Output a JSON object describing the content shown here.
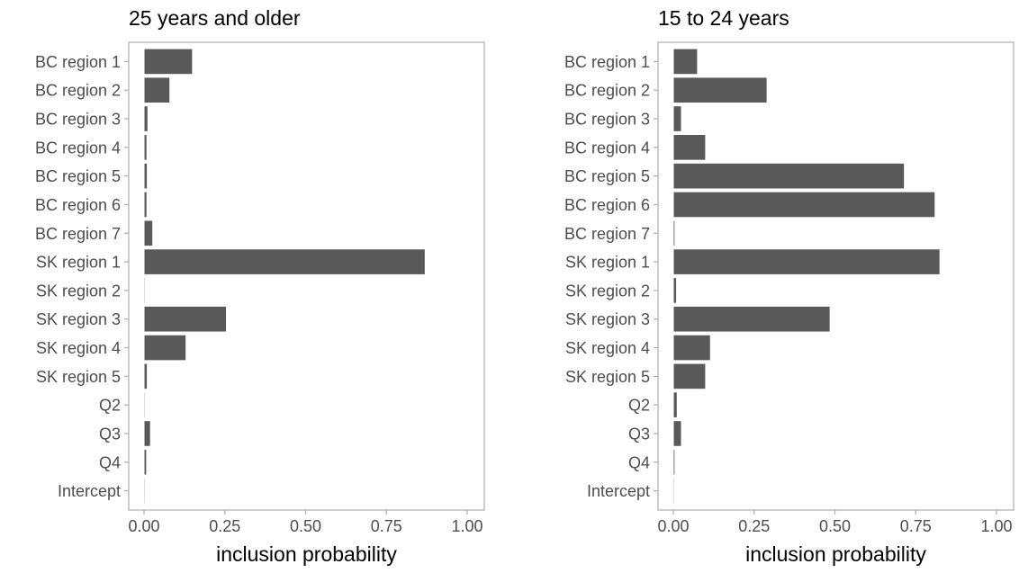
{
  "chart_data": [
    {
      "type": "bar",
      "orientation": "horizontal",
      "title": "25 years and older",
      "xlabel": "inclusion probability",
      "ylabel": "",
      "xlim": [
        0,
        1
      ],
      "xticks": [
        "0.00",
        "0.25",
        "0.50",
        "0.75",
        "1.00"
      ],
      "xtick_values": [
        0,
        0.25,
        0.5,
        0.75,
        1
      ],
      "categories": [
        "BC region 1",
        "BC region 2",
        "BC region 3",
        "BC region 4",
        "BC region 5",
        "BC region 6",
        "BC region 7",
        "SK region 1",
        "SK region 2",
        "SK region 3",
        "SK region 4",
        "SK region 5",
        "Q2",
        "Q3",
        "Q4",
        "Intercept"
      ],
      "values": [
        0.15,
        0.08,
        0.012,
        0.009,
        0.01,
        0.009,
        0.027,
        0.87,
        0.003,
        0.255,
        0.13,
        0.01,
        0.003,
        0.02,
        0.008,
        0.002
      ],
      "bar_color": "#595959",
      "grid": false
    },
    {
      "type": "bar",
      "orientation": "horizontal",
      "title": "15 to 24 years",
      "xlabel": "inclusion probability",
      "ylabel": "",
      "xlim": [
        0,
        1
      ],
      "xticks": [
        "0.00",
        "0.25",
        "0.50",
        "0.75",
        "1.00"
      ],
      "xtick_values": [
        0,
        0.25,
        0.5,
        0.75,
        1
      ],
      "categories": [
        "BC region 1",
        "BC region 2",
        "BC region 3",
        "BC region 4",
        "BC region 5",
        "BC region 6",
        "BC region 7",
        "SK region 1",
        "SK region 2",
        "SK region 3",
        "SK region 4",
        "SK region 5",
        "Q2",
        "Q3",
        "Q4",
        "Intercept"
      ],
      "values": [
        0.075,
        0.29,
        0.025,
        0.1,
        0.715,
        0.81,
        0.005,
        0.825,
        0.01,
        0.485,
        0.115,
        0.1,
        0.012,
        0.025,
        0.005,
        0.003
      ],
      "bar_color": "#595959",
      "grid": false
    }
  ]
}
